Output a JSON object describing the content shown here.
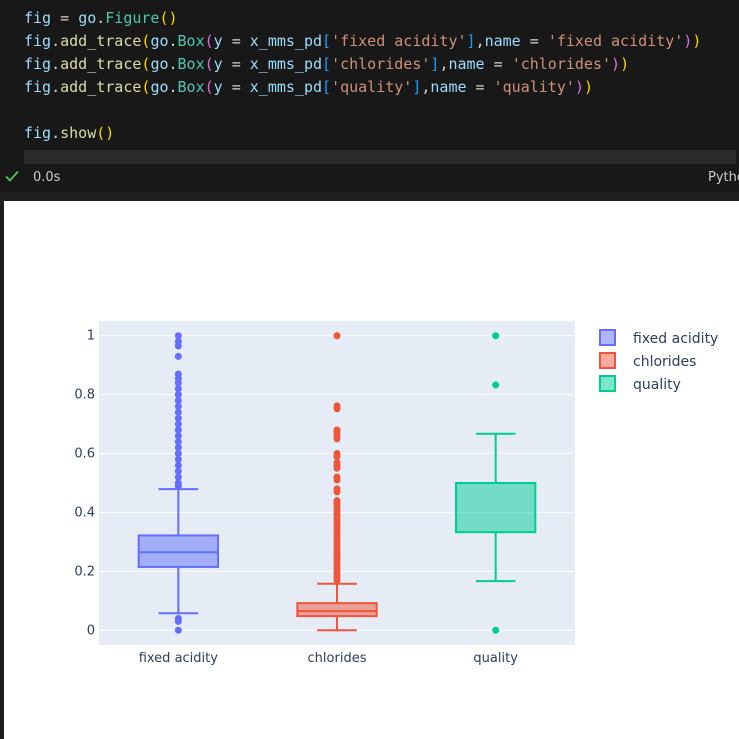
{
  "code": {
    "lines": [
      [
        [
          "tok-var",
          "fig"
        ],
        [
          "tok-op",
          " = "
        ],
        [
          "tok-var",
          "go"
        ],
        [
          "tok-op",
          "."
        ],
        [
          "tok-cls",
          "Figure"
        ],
        [
          "tok-p1",
          "()"
        ]
      ],
      [
        [
          "tok-var",
          "fig"
        ],
        [
          "tok-op",
          "."
        ],
        [
          "tok-fn",
          "add_trace"
        ],
        [
          "tok-p1",
          "("
        ],
        [
          "tok-var",
          "go"
        ],
        [
          "tok-op",
          "."
        ],
        [
          "tok-cls",
          "Box"
        ],
        [
          "tok-p2",
          "("
        ],
        [
          "tok-var",
          "y"
        ],
        [
          "tok-op",
          " = "
        ],
        [
          "tok-var",
          "x_mms_pd"
        ],
        [
          "tok-p3",
          "["
        ],
        [
          "tok-str",
          "'fixed acidity'"
        ],
        [
          "tok-p3",
          "]"
        ],
        [
          "tok-op",
          ","
        ],
        [
          "tok-var",
          "name"
        ],
        [
          "tok-op",
          " = "
        ],
        [
          "tok-str",
          "'fixed acidity'"
        ],
        [
          "tok-p2",
          ")"
        ],
        [
          "tok-p1",
          ")"
        ]
      ],
      [
        [
          "tok-var",
          "fig"
        ],
        [
          "tok-op",
          "."
        ],
        [
          "tok-fn",
          "add_trace"
        ],
        [
          "tok-p1",
          "("
        ],
        [
          "tok-var",
          "go"
        ],
        [
          "tok-op",
          "."
        ],
        [
          "tok-cls",
          "Box"
        ],
        [
          "tok-p2",
          "("
        ],
        [
          "tok-var",
          "y"
        ],
        [
          "tok-op",
          " = "
        ],
        [
          "tok-var",
          "x_mms_pd"
        ],
        [
          "tok-p3",
          "["
        ],
        [
          "tok-str",
          "'chlorides'"
        ],
        [
          "tok-p3",
          "]"
        ],
        [
          "tok-op",
          ","
        ],
        [
          "tok-var",
          "name"
        ],
        [
          "tok-op",
          " = "
        ],
        [
          "tok-str",
          "'chlorides'"
        ],
        [
          "tok-p2",
          ")"
        ],
        [
          "tok-p1",
          ")"
        ]
      ],
      [
        [
          "tok-var",
          "fig"
        ],
        [
          "tok-op",
          "."
        ],
        [
          "tok-fn",
          "add_trace"
        ],
        [
          "tok-p1",
          "("
        ],
        [
          "tok-var",
          "go"
        ],
        [
          "tok-op",
          "."
        ],
        [
          "tok-cls",
          "Box"
        ],
        [
          "tok-p2",
          "("
        ],
        [
          "tok-var",
          "y"
        ],
        [
          "tok-op",
          " = "
        ],
        [
          "tok-var",
          "x_mms_pd"
        ],
        [
          "tok-p3",
          "["
        ],
        [
          "tok-str",
          "'quality'"
        ],
        [
          "tok-p3",
          "]"
        ],
        [
          "tok-op",
          ","
        ],
        [
          "tok-var",
          "name"
        ],
        [
          "tok-op",
          " = "
        ],
        [
          "tok-str",
          "'quality'"
        ],
        [
          "tok-p2",
          ")"
        ],
        [
          "tok-p1",
          ")"
        ]
      ],
      [],
      [
        [
          "tok-var",
          "fig"
        ],
        [
          "tok-op",
          "."
        ],
        [
          "tok-fn",
          "show"
        ],
        [
          "tok-p1",
          "()"
        ]
      ]
    ]
  },
  "status": {
    "check_icon": "check-icon",
    "exec_time": "0.0s",
    "kernel": "Python"
  },
  "colors": {
    "editor_bg": "#181818",
    "plot_bg": "#e5ecf6",
    "fixed_acidity": "#636efa",
    "chlorides": "#ef553b",
    "quality": "#00cc96"
  },
  "chart_data": {
    "type": "box",
    "categories": [
      "fixed acidity",
      "chlorides",
      "quality"
    ],
    "ylim": [
      -0.05,
      1.05
    ],
    "yticks": [
      0,
      0.2,
      0.4,
      0.6,
      0.8,
      1
    ],
    "ytick_labels": [
      "0",
      "0.2",
      "0.4",
      "0.6",
      "0.8",
      "1"
    ],
    "grid": true,
    "legend_position": "top-right",
    "series": [
      {
        "name": "fixed acidity",
        "color": "#636efa",
        "lowerfence": 0.058,
        "q1": 0.215,
        "median": 0.265,
        "q3": 0.322,
        "upperfence": 0.479,
        "outliers": [
          1.0,
          0.98,
          0.965,
          0.93,
          0.87,
          0.855,
          0.84,
          0.82,
          0.8,
          0.78,
          0.76,
          0.74,
          0.72,
          0.7,
          0.68,
          0.66,
          0.64,
          0.62,
          0.6,
          0.58,
          0.56,
          0.54,
          0.52,
          0.5,
          0.49,
          0.04,
          0.03,
          0.0
        ]
      },
      {
        "name": "chlorides",
        "color": "#ef553b",
        "lowerfence": 0.0,
        "q1": 0.048,
        "median": 0.065,
        "q3": 0.092,
        "upperfence": 0.158,
        "outliers": [
          1.0,
          0.762,
          0.752,
          0.68,
          0.672,
          0.66,
          0.65,
          0.6,
          0.59,
          0.57,
          0.56,
          0.55,
          0.52,
          0.51,
          0.48,
          0.47,
          0.44,
          0.43,
          0.42,
          0.41,
          0.4,
          0.39,
          0.38,
          0.37,
          0.36,
          0.35,
          0.34,
          0.33,
          0.32,
          0.31,
          0.3,
          0.29,
          0.28,
          0.27,
          0.26,
          0.25,
          0.24,
          0.23,
          0.22,
          0.21,
          0.2,
          0.19,
          0.18,
          0.17
        ]
      },
      {
        "name": "quality",
        "color": "#00cc96",
        "lowerfence": 0.167,
        "q1": 0.333,
        "median": 0.5,
        "q3": 0.5,
        "upperfence": 0.667,
        "outliers": [
          1.0,
          0.833,
          0.0
        ]
      }
    ]
  }
}
